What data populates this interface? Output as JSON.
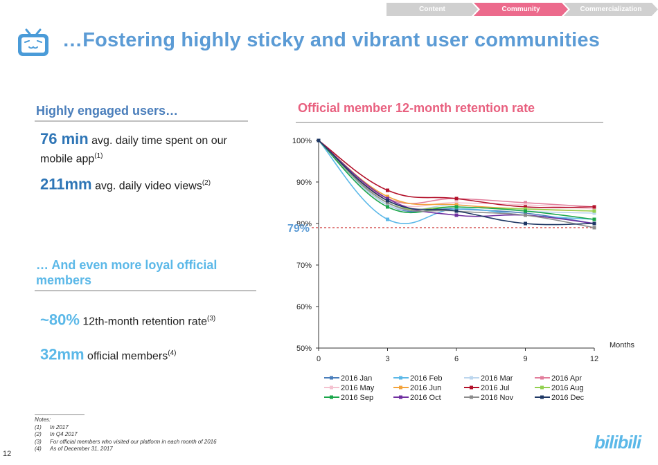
{
  "nav": {
    "items": [
      {
        "label": "Content",
        "color": "#d0d0d0",
        "active": false
      },
      {
        "label": "Community",
        "color": "#ec6a8c",
        "active": true
      },
      {
        "label": "Commercialization",
        "color": "#d0d0d0",
        "active": false
      }
    ]
  },
  "header": {
    "logo_icon": "tv-face-icon",
    "title": "…Fostering highly sticky and vibrant user communities"
  },
  "left": {
    "section1_heading": "Highly engaged users…",
    "stat1_value": "76 min",
    "stat1_text_line1": " avg. daily time spent on our",
    "stat1_text_line2": "mobile app",
    "stat1_note": "(1)",
    "stat2_value": "211mm",
    "stat2_text": " avg. daily video views",
    "stat2_note": "(2)",
    "section2_heading_line1": "… And even more loyal official",
    "section2_heading_line2": "members",
    "stat3_value": "~80%",
    "stat3_text": " 12th-month retention rate",
    "stat3_note": "(3)",
    "stat4_value": "32mm",
    "stat4_text": " official members",
    "stat4_note": "(4)"
  },
  "notes": {
    "heading": "Notes:",
    "items": [
      {
        "num": "(1)",
        "text": "In 2017"
      },
      {
        "num": "(2)",
        "text": "In Q4 2017"
      },
      {
        "num": "(3)",
        "text": "For official members who visited our platform in each month of 2016"
      },
      {
        "num": "(4)",
        "text": "As of December 31, 2017"
      }
    ]
  },
  "footer": {
    "page_number": "12",
    "brand": "bilibili",
    "brand_color": "#5bb8e8"
  },
  "chart_data": {
    "type": "line",
    "title": "Official member 12-month retention rate",
    "xlabel": "Months",
    "ylabel": "",
    "x": [
      0,
      3,
      6,
      9,
      12
    ],
    "xlim": [
      0,
      12
    ],
    "ylim": [
      50,
      100
    ],
    "yticks": [
      50,
      60,
      70,
      80,
      90,
      100
    ],
    "ytick_labels": [
      "50%",
      "60%",
      "70%",
      "80%",
      "90%",
      "100%"
    ],
    "xticks": [
      0,
      3,
      6,
      9,
      12
    ],
    "reference_line": {
      "value": 79,
      "label": "79%",
      "style": "dashed",
      "color": "#c00000"
    },
    "legend_position": "bottom",
    "series": [
      {
        "name": "2016 Jan",
        "color": "#4a7ebb",
        "values": [
          100,
          84.5,
          83.5,
          82.5,
          80
        ]
      },
      {
        "name": "2016 Feb",
        "color": "#5bb8e8",
        "values": [
          100,
          81,
          83.5,
          82,
          81
        ]
      },
      {
        "name": "2016 Mar",
        "color": "#bcd6ee",
        "values": [
          100,
          84.5,
          84.5,
          83,
          82.5
        ]
      },
      {
        "name": "2016 Apr",
        "color": "#e27d9b",
        "values": [
          100,
          86,
          86,
          85,
          84
        ]
      },
      {
        "name": "2016 May",
        "color": "#f4c2d0",
        "values": [
          100,
          85.5,
          85,
          84.5,
          83.5
        ]
      },
      {
        "name": "2016 Jun",
        "color": "#f3a33c",
        "values": [
          100,
          86.5,
          84.5,
          83.5,
          83
        ]
      },
      {
        "name": "2016 Jul",
        "color": "#b3112a",
        "values": [
          100,
          88,
          86,
          84,
          84
        ]
      },
      {
        "name": "2016 Aug",
        "color": "#92d050",
        "values": [
          100,
          85,
          84,
          83.5,
          83
        ]
      },
      {
        "name": "2016 Sep",
        "color": "#1aa64a",
        "values": [
          100,
          84,
          84,
          83,
          81
        ]
      },
      {
        "name": "2016 Oct",
        "color": "#7030a0",
        "values": [
          100,
          86,
          82,
          82,
          80
        ]
      },
      {
        "name": "2016 Nov",
        "color": "#8c8c8c",
        "values": [
          100,
          85,
          83,
          82,
          79
        ]
      },
      {
        "name": "2016 Dec",
        "color": "#1f3864",
        "values": [
          100,
          85.5,
          83,
          80,
          80
        ]
      }
    ]
  }
}
